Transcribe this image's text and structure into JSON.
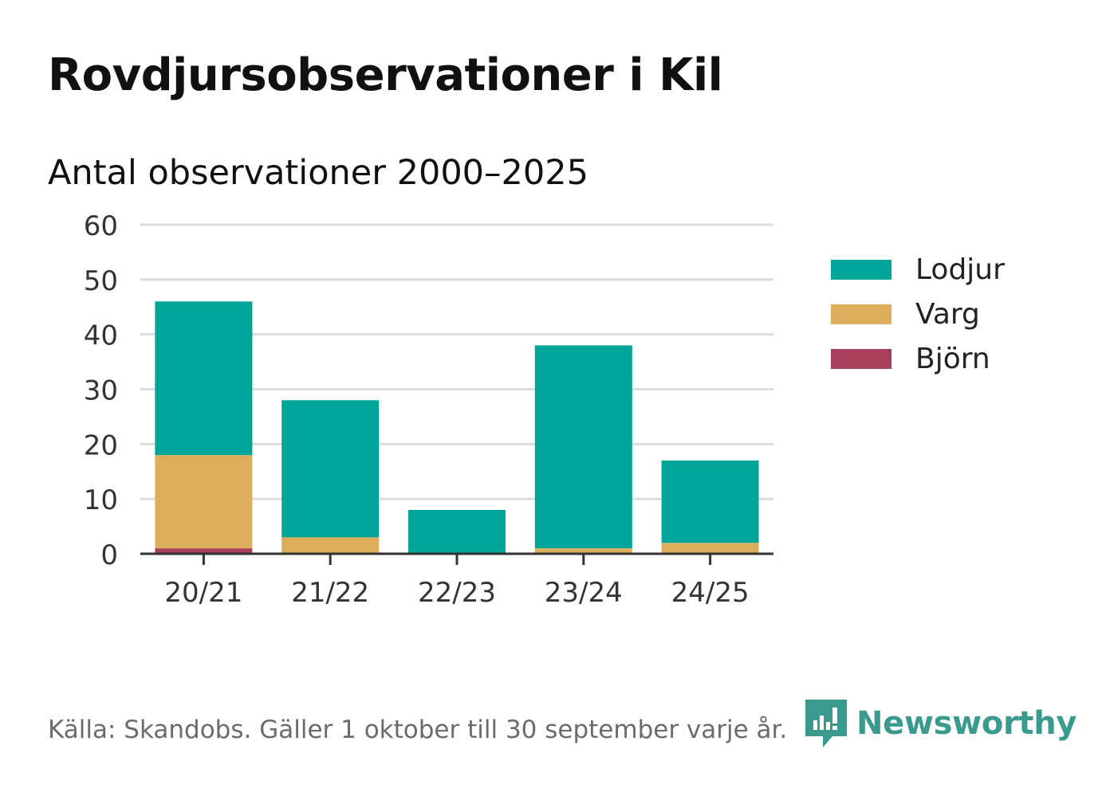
{
  "title": "Rovdjursobservationer i Kil",
  "subtitle": "Antal observationer 2000–2025",
  "colors": {
    "lodjur": "#00a59a",
    "varg": "#dbad5d",
    "bjorn": "#a8405d",
    "brand": "#3a9a8e"
  },
  "chart_data": {
    "type": "bar",
    "stacked": true,
    "categories": [
      "20/21",
      "21/22",
      "22/23",
      "23/24",
      "24/25"
    ],
    "series": [
      {
        "name": "Björn",
        "values": [
          1,
          0,
          0,
          0,
          0
        ],
        "color": "#a8405d"
      },
      {
        "name": "Varg",
        "values": [
          17,
          3,
          0,
          1,
          2
        ],
        "color": "#dbad5d"
      },
      {
        "name": "Lodjur",
        "values": [
          28,
          25,
          8,
          37,
          15
        ],
        "color": "#00a59a"
      }
    ],
    "ylim": [
      0,
      60
    ],
    "yticks": [
      0,
      10,
      20,
      30,
      40,
      50,
      60
    ],
    "grid": true,
    "legend_position": "right"
  },
  "legend": [
    {
      "label": "Lodjur",
      "color": "#00a59a"
    },
    {
      "label": "Varg",
      "color": "#dbad5d"
    },
    {
      "label": "Björn",
      "color": "#a8405d"
    }
  ],
  "source": "Källa: Skandobs. Gäller 1 oktober till 30 september varje år.",
  "brand": {
    "name": "Newsworthy",
    "icon": "newsworthy-logo-icon"
  }
}
